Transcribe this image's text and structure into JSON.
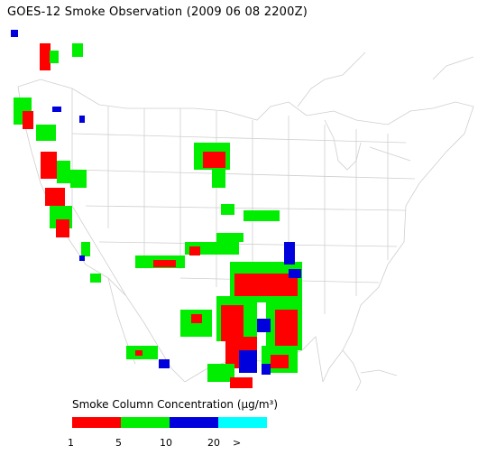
{
  "title": "GOES-12 Smoke Observation (2009 06 08  2200Z)",
  "legend": {
    "title": "Smoke Column Concentration (μg/m³)",
    "colors": [
      "#ff0000",
      "#00ee00",
      "#0000dd",
      "#00ffff"
    ],
    "ticks": [
      "1",
      "5",
      "10",
      "20",
      ">"
    ]
  },
  "map": {
    "region": "continental-united-states",
    "smoke_colors": {
      "low": "#ff0000",
      "mid": "#00ee00",
      "high": "#0000dd"
    }
  }
}
